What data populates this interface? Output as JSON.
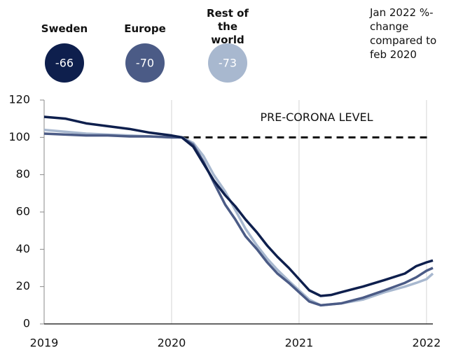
{
  "chart_data": {
    "type": "line",
    "annotation": "Jan 2022 %-change compared to feb 2020",
    "reference_line": {
      "label": "PRE-CORONA LEVEL",
      "y": 100,
      "x_start": 2020.08
    },
    "x": [
      2019,
      2019.17,
      2019.33,
      2019.5,
      2019.67,
      2019.83,
      2020,
      2020.08,
      2020.17,
      2020.25,
      2020.33,
      2020.42,
      2020.5,
      2020.58,
      2020.67,
      2020.75,
      2020.83,
      2020.92,
      2021,
      2021.08,
      2021.17,
      2021.25,
      2021.33,
      2021.5,
      2021.67,
      2021.83,
      2021.92,
      2022,
      2022.05
    ],
    "series": [
      {
        "name": "Sweden",
        "color": "#0e1f4d",
        "change": -66,
        "values": [
          111,
          110,
          107.5,
          106,
          104.5,
          102.5,
          101,
          100,
          95,
          86,
          77,
          69,
          63,
          56,
          49,
          42,
          36,
          30,
          24,
          18,
          15,
          15.5,
          17,
          20,
          23.5,
          27,
          31,
          33,
          34
        ]
      },
      {
        "name": "Europe",
        "color": "#4b5b86",
        "change": -70,
        "values": [
          102,
          101.5,
          101,
          101,
          100.5,
          100.5,
          100,
          100,
          96,
          87,
          76,
          64,
          56,
          47,
          40,
          33,
          27,
          22,
          17,
          12,
          10,
          10.5,
          11,
          14,
          18,
          22,
          25,
          28.5,
          30
        ]
      },
      {
        "name": "Rest of the world",
        "color": "#a8b8cf",
        "change": -73,
        "values": [
          104,
          103,
          102,
          101.5,
          101,
          100.5,
          100,
          100,
          97,
          90,
          80,
          71,
          61,
          51,
          42,
          35,
          29,
          23,
          18,
          13,
          10,
          10.5,
          11,
          13,
          17,
          20,
          22,
          24,
          27
        ]
      }
    ],
    "xlim": [
      2019,
      2022.05
    ],
    "xticks": [
      2019,
      2020,
      2021,
      2022
    ],
    "ylim": [
      0,
      120
    ],
    "yticks": [
      0,
      20,
      40,
      60,
      80,
      100,
      120
    ],
    "grid": true
  }
}
